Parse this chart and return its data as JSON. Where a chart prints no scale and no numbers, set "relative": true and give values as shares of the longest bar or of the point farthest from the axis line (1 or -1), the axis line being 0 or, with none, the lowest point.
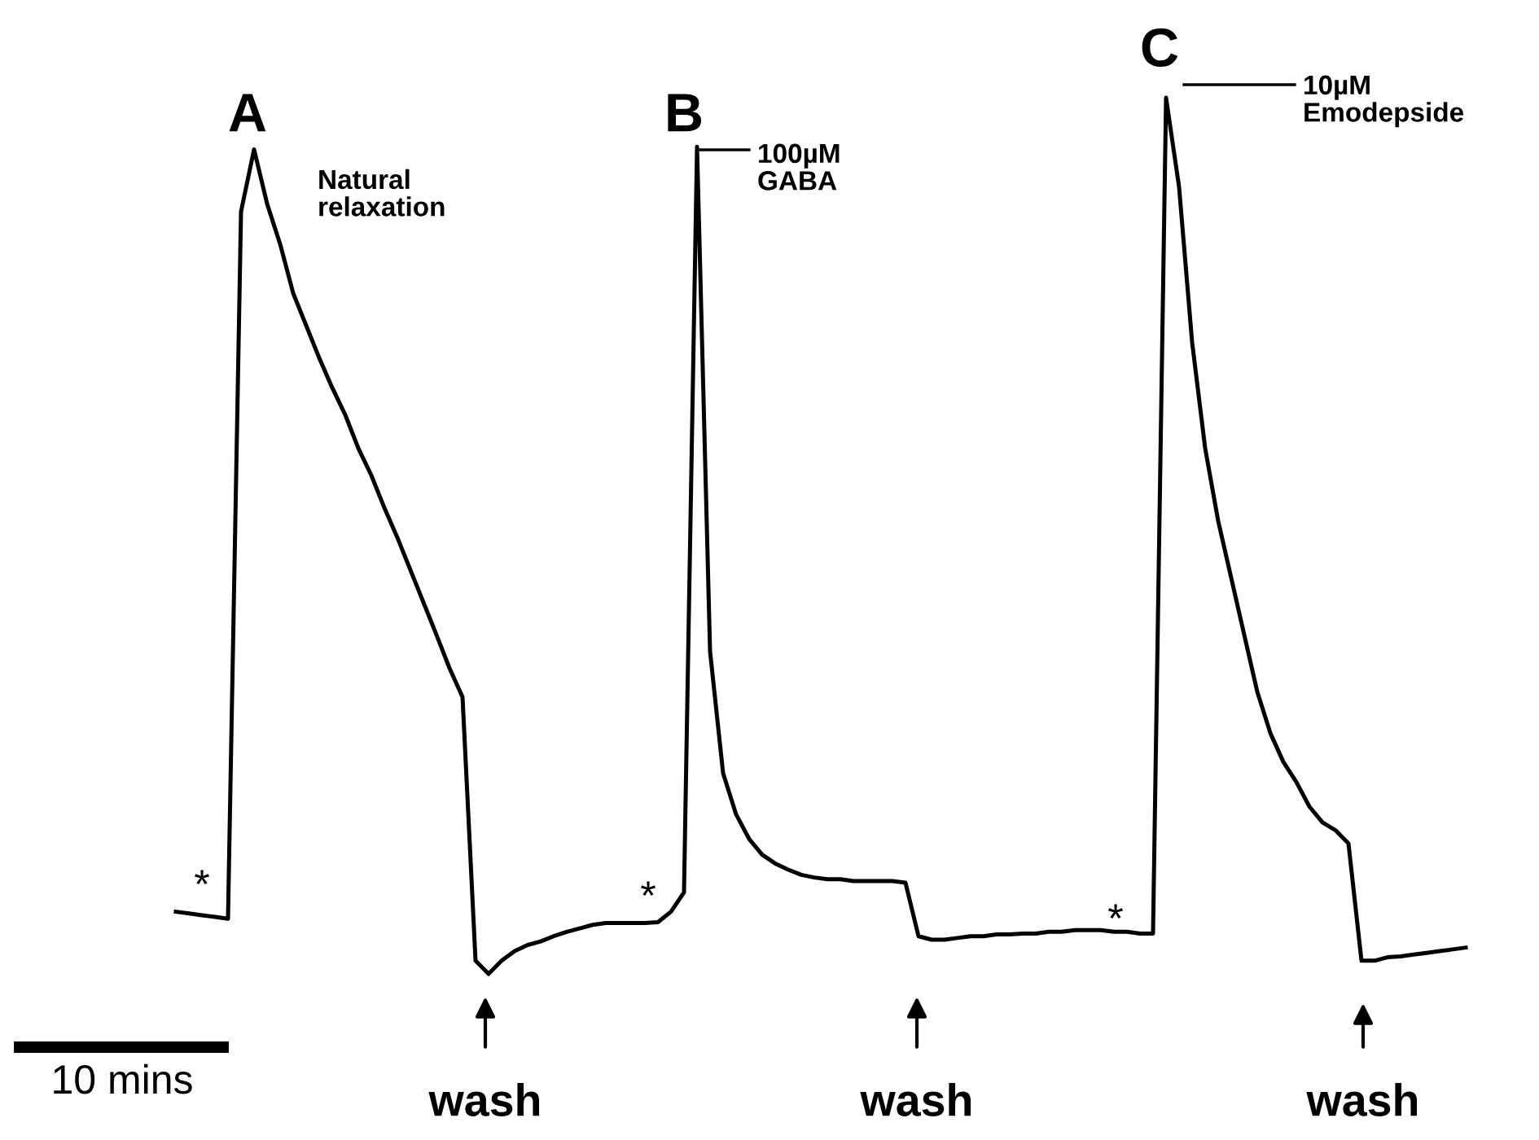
{
  "chart_data": {
    "type": "line",
    "relative": true,
    "marker": "none",
    "line_style": "solid",
    "categories": [
      null,
      null,
      null,
      null,
      null,
      null,
      null,
      null,
      null,
      null,
      null,
      null,
      null,
      null,
      null,
      null,
      null,
      null,
      null,
      null,
      null,
      null,
      null,
      null,
      null,
      null,
      null,
      null,
      null,
      null,
      null,
      null,
      null,
      null,
      null,
      null,
      null,
      null,
      null,
      null,
      null,
      null,
      null,
      null,
      null,
      null,
      null,
      null,
      null,
      null,
      null,
      null,
      null,
      null,
      null,
      null,
      null,
      null,
      null,
      null,
      null,
      null,
      null,
      null,
      null,
      null,
      null,
      null,
      null,
      null,
      null,
      null,
      null,
      null,
      null,
      null,
      null,
      null,
      null,
      null,
      null,
      null,
      null,
      null,
      null,
      null,
      null,
      null,
      null,
      null,
      null,
      null,
      null,
      null,
      null,
      null,
      null,
      null,
      null,
      null
    ],
    "series": [
      {
        "color": "#000000",
        "values": [
          0.071,
          0.069,
          0.067,
          0.065,
          0.063,
          0.87,
          0.941,
          0.879,
          0.833,
          0.777,
          0.74,
          0.703,
          0.669,
          0.638,
          0.6,
          0.569,
          0.532,
          0.498,
          0.461,
          0.424,
          0.387,
          0.349,
          0.316,
          0.015,
          0.0,
          0.015,
          0.026,
          0.033,
          0.037,
          0.043,
          0.048,
          0.052,
          0.056,
          0.058,
          0.058,
          0.058,
          0.058,
          0.059,
          0.071,
          0.093,
          0.944,
          0.368,
          0.229,
          0.182,
          0.154,
          0.136,
          0.126,
          0.119,
          0.113,
          0.11,
          0.108,
          0.108,
          0.106,
          0.106,
          0.106,
          0.106,
          0.104,
          0.043,
          0.039,
          0.039,
          0.041,
          0.043,
          0.043,
          0.045,
          0.045,
          0.046,
          0.046,
          0.048,
          0.048,
          0.05,
          0.05,
          0.05,
          0.048,
          0.048,
          0.046,
          0.046,
          1.0,
          0.898,
          0.721,
          0.6,
          0.517,
          0.452,
          0.387,
          0.322,
          0.275,
          0.242,
          0.219,
          0.191,
          0.173,
          0.164,
          0.149,
          0.015,
          0.015,
          0.019,
          0.02,
          0.022,
          0.024,
          0.026,
          0.028,
          0.03
        ]
      }
    ],
    "annotations": [
      "A",
      "Natural\nrelaxation",
      "B",
      "100µM\nGABA",
      "C",
      "10µM\nEmodepside",
      "*",
      "*",
      "*",
      "wash",
      "wash",
      "wash",
      "10 mins"
    ]
  }
}
